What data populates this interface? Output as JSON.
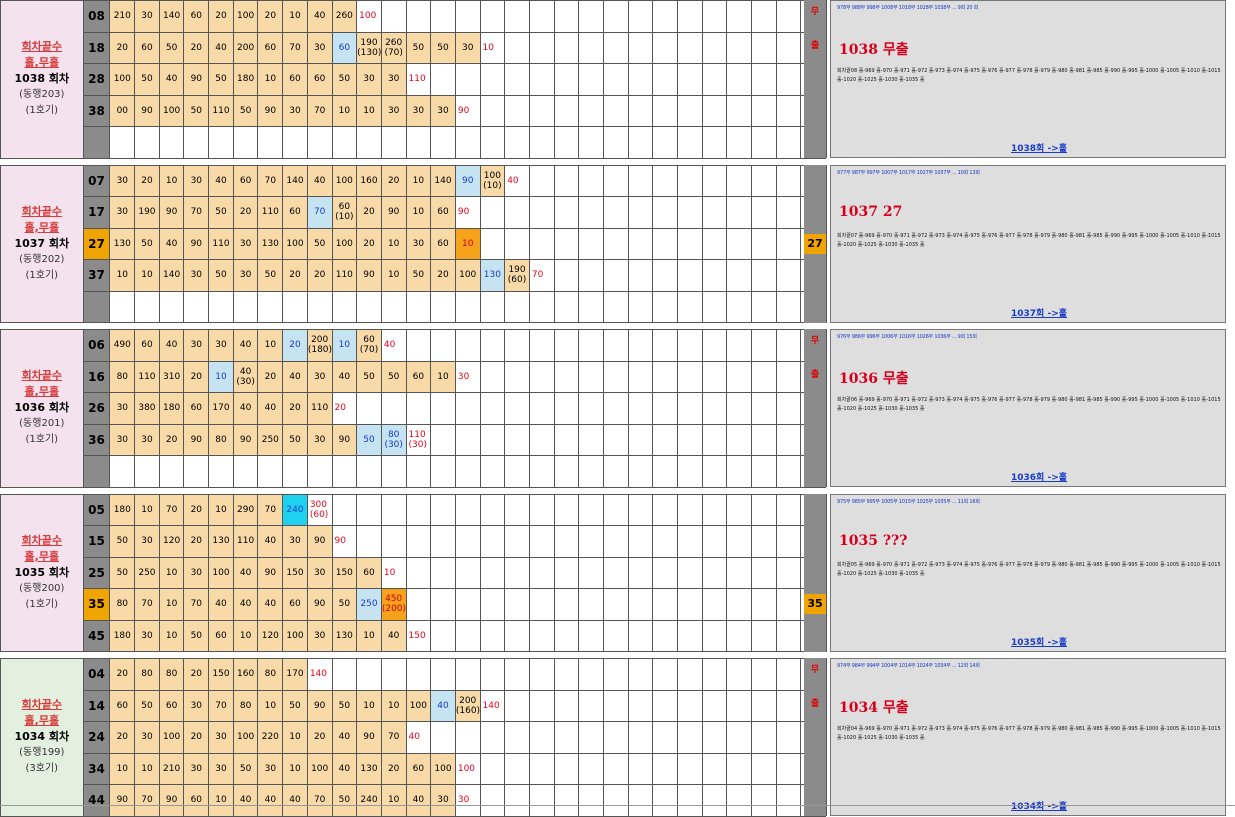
{
  "blocks": [
    {
      "labels": [
        "회차끝수",
        "홀,무홀",
        "1038 회차",
        "(동행203)",
        "(1호기)"
      ],
      "green": false,
      "rows": [
        {
          "num": "08",
          "hl": false,
          "cells": [
            "210",
            "30",
            "140",
            "60",
            "20",
            "100",
            "20",
            "10",
            "40",
            "260"
          ],
          "after": "100",
          "special": {}
        },
        {
          "num": "18",
          "hl": false,
          "cells": [
            "20",
            "60",
            "50",
            "20",
            "40",
            "200",
            "60",
            "70",
            "30",
            "60",
            "190\n(130)",
            "260\n(70)",
            "50",
            "50",
            "30"
          ],
          "after": "10",
          "special": {
            "9": "b",
            "10": "v",
            "11": "v"
          }
        },
        {
          "num": "28",
          "hl": false,
          "cells": [
            "100",
            "50",
            "40",
            "90",
            "50",
            "180",
            "10",
            "60",
            "60",
            "50",
            "30",
            "30"
          ],
          "after": "110",
          "special": {}
        },
        {
          "num": "38",
          "hl": false,
          "cells": [
            "00",
            "90",
            "100",
            "50",
            "110",
            "50",
            "90",
            "30",
            "70",
            "10",
            "10",
            "30",
            "30",
            "30"
          ],
          "after": "90",
          "special": {}
        },
        {
          "num": "",
          "hl": false,
          "cells": [],
          "after": "",
          "special": {}
        }
      ]
    },
    {
      "labels": [
        "회차끝수",
        "홀,무홀",
        "1037 회차",
        "(동행202)",
        "(1호기)"
      ],
      "green": false,
      "rows": [
        {
          "num": "07",
          "hl": false,
          "cells": [
            "30",
            "20",
            "10",
            "30",
            "40",
            "60",
            "70",
            "140",
            "40",
            "100",
            "160",
            "20",
            "10",
            "140",
            "90",
            "100\n(10)"
          ],
          "after": "40",
          "special": {
            "14": "b",
            "15": "v"
          }
        },
        {
          "num": "17",
          "hl": false,
          "cells": [
            "30",
            "190",
            "90",
            "70",
            "50",
            "20",
            "110",
            "60",
            "70",
            "60\n(10)",
            "20",
            "90",
            "10",
            "60"
          ],
          "after": "90",
          "special": {
            "8": "b"
          }
        },
        {
          "num": "27",
          "hl": true,
          "cells": [
            "130",
            "50",
            "40",
            "90",
            "110",
            "30",
            "130",
            "100",
            "50",
            "100",
            "20",
            "10",
            "30",
            "60",
            "10"
          ],
          "after": "",
          "special": {
            "14": "o"
          }
        },
        {
          "num": "37",
          "hl": false,
          "cells": [
            "10",
            "10",
            "140",
            "30",
            "50",
            "30",
            "50",
            "20",
            "20",
            "110",
            "90",
            "10",
            "50",
            "20",
            "100",
            "130",
            "190\n(60)"
          ],
          "after": "70",
          "special": {
            "15": "b",
            "16": "v"
          }
        },
        {
          "num": "",
          "hl": false,
          "cells": [],
          "after": "",
          "special": {}
        }
      ]
    },
    {
      "labels": [
        "회차끝수",
        "홀,무홀",
        "1036 회차",
        "(동행201)",
        "(1호기)"
      ],
      "green": false,
      "rows": [
        {
          "num": "06",
          "hl": false,
          "cells": [
            "490",
            "60",
            "40",
            "30",
            "30",
            "40",
            "10",
            "20",
            "200\n(180)",
            "10",
            "60\n(70)"
          ],
          "after": "40",
          "special": {
            "7": "b",
            "9": "b"
          }
        },
        {
          "num": "16",
          "hl": false,
          "cells": [
            "80",
            "110",
            "310",
            "20",
            "10",
            "40\n(30)",
            "20",
            "40",
            "30",
            "40",
            "50",
            "50",
            "60",
            "10"
          ],
          "after": "30",
          "special": {
            "4": "b"
          }
        },
        {
          "num": "26",
          "hl": false,
          "cells": [
            "30",
            "380",
            "180",
            "60",
            "170",
            "40",
            "40",
            "20",
            "110"
          ],
          "after": "20",
          "special": {}
        },
        {
          "num": "36",
          "hl": false,
          "cells": [
            "30",
            "30",
            "20",
            "90",
            "80",
            "90",
            "250",
            "50",
            "30",
            "90",
            "50",
            "80\n(30)"
          ],
          "after": "110\n(30)",
          "special": {
            "10": "b",
            "11": "b"
          }
        },
        {
          "num": "",
          "hl": false,
          "cells": [],
          "after": "",
          "special": {}
        }
      ]
    },
    {
      "labels": [
        "회차끝수",
        "홀,무홀",
        "1035 회차",
        "(동행200)",
        "(1호기)"
      ],
      "green": false,
      "rows": [
        {
          "num": "05",
          "hl": false,
          "cells": [
            "180",
            "10",
            "70",
            "20",
            "10",
            "290",
            "70",
            "240"
          ],
          "after": "300\n(60)",
          "special": {
            "7": "c"
          }
        },
        {
          "num": "15",
          "hl": false,
          "cells": [
            "50",
            "30",
            "120",
            "20",
            "130",
            "110",
            "40",
            "30",
            "90"
          ],
          "after": "90",
          "special": {}
        },
        {
          "num": "25",
          "hl": false,
          "cells": [
            "50",
            "250",
            "10",
            "30",
            "100",
            "40",
            "90",
            "150",
            "30",
            "150",
            "60"
          ],
          "after": "10",
          "special": {}
        },
        {
          "num": "35",
          "hl": true,
          "cells": [
            "80",
            "70",
            "10",
            "70",
            "40",
            "40",
            "40",
            "60",
            "90",
            "50",
            "250",
            "450\n(200)"
          ],
          "after": "",
          "special": {
            "10": "b",
            "11": "o"
          }
        },
        {
          "num": "45",
          "hl": false,
          "cells": [
            "180",
            "30",
            "10",
            "50",
            "60",
            "10",
            "120",
            "100",
            "30",
            "130",
            "10",
            "40"
          ],
          "after": "150",
          "special": {}
        }
      ]
    },
    {
      "labels": [
        "회차끝수",
        "홀,무홀",
        "1034 회차",
        "(동행199)",
        "(3호기)"
      ],
      "green": true,
      "rows": [
        {
          "num": "04",
          "hl": false,
          "cells": [
            "20",
            "80",
            "80",
            "20",
            "150",
            "160",
            "80",
            "170"
          ],
          "after": "140",
          "special": {}
        },
        {
          "num": "14",
          "hl": false,
          "cells": [
            "60",
            "50",
            "60",
            "30",
            "70",
            "80",
            "10",
            "50",
            "90",
            "50",
            "10",
            "10",
            "100",
            "40",
            "200\n(160)"
          ],
          "after": "140",
          "special": {
            "13": "b",
            "14": "v"
          }
        },
        {
          "num": "24",
          "hl": false,
          "cells": [
            "20",
            "30",
            "100",
            "20",
            "30",
            "100",
            "220",
            "10",
            "20",
            "40",
            "90",
            "70"
          ],
          "after": "40",
          "special": {}
        },
        {
          "num": "34",
          "hl": false,
          "cells": [
            "10",
            "10",
            "210",
            "30",
            "30",
            "50",
            "30",
            "10",
            "100",
            "40",
            "130",
            "20",
            "60",
            "100"
          ],
          "after": "100",
          "special": {}
        },
        {
          "num": "44",
          "hl": false,
          "cells": [
            "90",
            "70",
            "90",
            "60",
            "10",
            "40",
            "40",
            "40",
            "70",
            "50",
            "240",
            "10",
            "40",
            "30"
          ],
          "after": "30",
          "special": {}
        }
      ]
    }
  ],
  "strip": {
    "marks": [
      {
        "top": "무",
        "bot": "출"
      },
      {
        "top": "",
        "bot": ""
      },
      {
        "top": "무",
        "bot": "출"
      },
      {
        "top": "",
        "bot": ""
      },
      {
        "top": "무",
        "bot": "출"
      }
    ],
    "hl_labels": [
      "27",
      "35"
    ]
  },
  "panels": [
    {
      "head": "1038 무출",
      "link": "1038회 ->홀",
      "note": "978무 988무 998무 1008무 1018무 1028무 1038무 ... 9회 20 회",
      "body": "회차끝08 홀-969 홀-970 홀-971 홀-972 홀-973 홀-974 홀-975 홀-976 홀-977 홀-978 홀-979 홀-980 홀-981 홀-985 홀-990 홀-995 홀-1000 홀-1005 홀-1010 홀-1015 홀-1020 홀-1025 홀-1030 홀-1035 홀"
    },
    {
      "head": "1037 27",
      "link": "1037회 ->홀",
      "note": "977무 987무 997무 1007무 1017무 1027무 1037무 ... 10회 13회",
      "body": "회차끝07 홀-969 홀-970 홀-971 홀-972 홀-973 홀-974 홀-975 홀-976 홀-977 홀-978 홀-979 홀-980 홀-981 홀-985 홀-990 홀-995 홀-1000 홀-1005 홀-1010 홀-1015 홀-1020 홀-1025 홀-1030 홀-1035 홀"
    },
    {
      "head": "1036 무출",
      "link": "1036회 ->홀",
      "note": "976무 986무 996무 1006무 1016무 1026무 1036무 ... 9회 15회",
      "body": "회차끝06 홀-969 홀-970 홀-971 홀-972 홀-973 홀-974 홀-975 홀-976 홀-977 홀-978 홀-979 홀-980 홀-981 홀-985 홀-990 홀-995 홀-1000 홀-1005 홀-1010 홀-1015 홀-1020 홀-1025 홀-1030 홀-1035 홀"
    },
    {
      "head": "1035 ???",
      "link": "1035회 ->홀",
      "note": "975무 985무 995무 1005무 1015무 1025무 1035무 ... 11회 16회",
      "body": "회차끝05 홀-969 홀-970 홀-971 홀-972 홀-973 홀-974 홀-975 홀-976 홀-977 홀-978 홀-979 홀-980 홀-981 홀-985 홀-990 홀-995 홀-1000 홀-1005 홀-1010 홀-1015 홀-1020 홀-1025 홀-1030 홀-1035 홀"
    },
    {
      "head": "1034 무출",
      "link": "1034회 ->홀",
      "note": "974무 984무 994무 1004무 1014무 1024무 1034무 ... 12회 14회",
      "body": "회차끝04 홀-969 홀-970 홀-971 홀-972 홀-973 홀-974 홀-975 홀-976 홀-977 홀-978 홀-979 홀-980 홀-981 홀-985 홀-990 홀-995 홀-1000 홀-1005 홀-1010 홀-1015 홀-1020 홀-1025 홀-1030 홀-1035 홀"
    }
  ]
}
